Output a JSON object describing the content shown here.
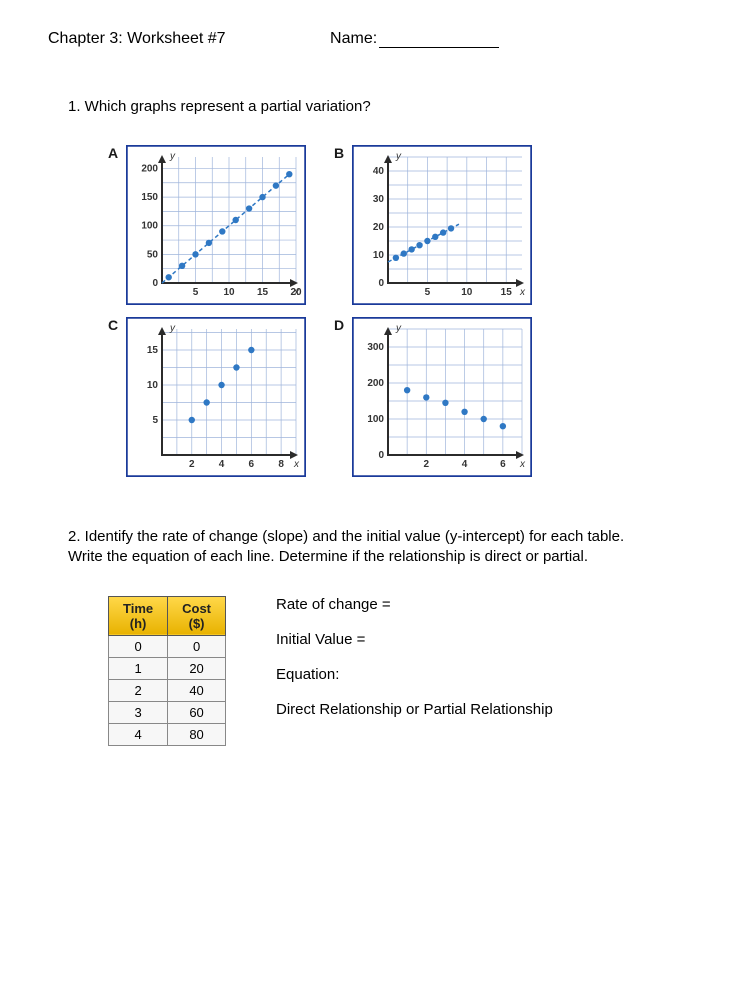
{
  "header": {
    "chapter": "Chapter 3: Worksheet #7",
    "name_label": "Name:"
  },
  "q1": {
    "text": "1. Which graphs represent a partial variation?"
  },
  "charts": {
    "width": 180,
    "height": 160,
    "border_color": "#1a3a9a",
    "grid_color": "#9fb5db",
    "axis_color": "#2b2b2b",
    "point_color": "#2f78c4",
    "bg_color": "#ffffff",
    "label_color": "#333333",
    "label_fontsize": 10,
    "items": [
      {
        "letter": "A",
        "xmax": 20,
        "ymax": 220,
        "xticks": [
          5,
          10,
          15,
          20
        ],
        "yticks": [
          50,
          100,
          150,
          200
        ],
        "xtick_labels": [
          "5",
          "10",
          "15",
          "20"
        ],
        "ytick_labels": [
          "50",
          "100",
          "150",
          "200"
        ],
        "y0tick": true,
        "points": [
          [
            1,
            10
          ],
          [
            3,
            30
          ],
          [
            5,
            50
          ],
          [
            7,
            70
          ],
          [
            9,
            90
          ],
          [
            11,
            110
          ],
          [
            13,
            130
          ],
          [
            15,
            150
          ],
          [
            17,
            170
          ],
          [
            19,
            190
          ]
        ],
        "dashed_line": {
          "x1": 0,
          "y1": 0,
          "x2": 19,
          "y2": 190
        }
      },
      {
        "letter": "B",
        "xmax": 17,
        "ymax": 45,
        "xticks": [
          5,
          10,
          15
        ],
        "yticks": [
          10,
          20,
          30,
          40
        ],
        "xtick_labels": [
          "5",
          "10",
          "15"
        ],
        "ytick_labels": [
          "10",
          "20",
          "30",
          "40"
        ],
        "y0tick": true,
        "points": [
          [
            1,
            9
          ],
          [
            2,
            10.5
          ],
          [
            3,
            12
          ],
          [
            4,
            13.5
          ],
          [
            5,
            15
          ],
          [
            6,
            16.5
          ],
          [
            7,
            18
          ],
          [
            8,
            19.5
          ]
        ],
        "dashed_line": {
          "x1": 0,
          "y1": 7.5,
          "x2": 9,
          "y2": 21
        }
      },
      {
        "letter": "C",
        "xmax": 9,
        "ymax": 18,
        "xticks": [
          2,
          4,
          6,
          8
        ],
        "yticks": [
          5,
          10,
          15
        ],
        "xtick_labels": [
          "2",
          "4",
          "6",
          "8"
        ],
        "ytick_labels": [
          "5",
          "10",
          "15"
        ],
        "y0tick": false,
        "points": [
          [
            2,
            5
          ],
          [
            3,
            7.5
          ],
          [
            4,
            10
          ],
          [
            5,
            12.5
          ],
          [
            6,
            15
          ]
        ],
        "dashed_line": null
      },
      {
        "letter": "D",
        "xmax": 7,
        "ymax": 350,
        "xticks": [
          2,
          4,
          6
        ],
        "yticks": [
          100,
          200,
          300
        ],
        "xtick_labels": [
          "2",
          "4",
          "6"
        ],
        "ytick_labels": [
          "100",
          "200",
          "300"
        ],
        "y0tick": true,
        "points": [
          [
            1,
            180
          ],
          [
            2,
            160
          ],
          [
            3,
            145
          ],
          [
            4,
            120
          ],
          [
            5,
            100
          ],
          [
            6,
            80
          ]
        ],
        "dashed_line": null
      }
    ]
  },
  "q2": {
    "text": "2. Identify the rate of change (slope) and the initial value (y-intercept) for each table. Write the equation of each line. Determine if the relationship is direct or partial."
  },
  "table": {
    "col1_header_l1": "Time",
    "col1_header_l2": "(h)",
    "col2_header_l1": "Cost",
    "col2_header_l2": "($)",
    "rows": [
      {
        "time": "0",
        "cost": "0"
      },
      {
        "time": "1",
        "cost": "20"
      },
      {
        "time": "2",
        "cost": "40"
      },
      {
        "time": "3",
        "cost": "60"
      },
      {
        "time": "4",
        "cost": "80"
      }
    ]
  },
  "answers": {
    "rate": "Rate of change =",
    "initial": "Initial Value =",
    "equation": "Equation:",
    "relation": "Direct Relationship or Partial Relationship"
  }
}
